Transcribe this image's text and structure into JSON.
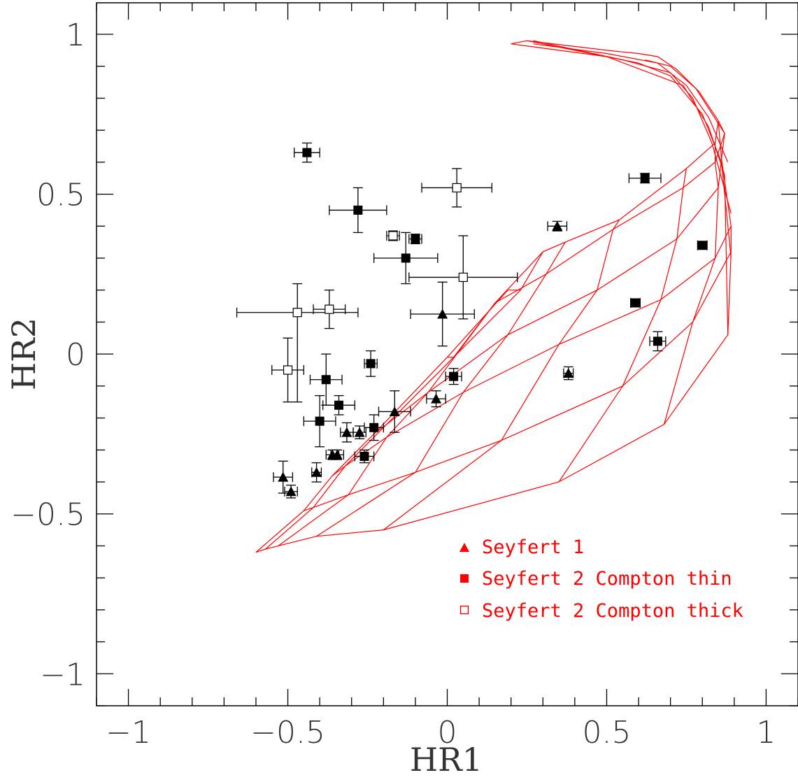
{
  "chart_data": {
    "type": "scatter",
    "xlabel": "HR1",
    "ylabel": "HR2",
    "xlim": [
      -1.1,
      1.1
    ],
    "ylim": [
      -1.1,
      1.0985
    ],
    "x_ticks": [
      {
        "value": -1,
        "label": "−1"
      },
      {
        "value": -0.5,
        "label": "−0.5"
      },
      {
        "value": 0,
        "label": "0"
      },
      {
        "value": 0.5,
        "label": "0.5"
      },
      {
        "value": 1,
        "label": "1"
      }
    ],
    "y_ticks": [
      {
        "value": -1,
        "label": "−1"
      },
      {
        "value": -0.5,
        "label": "−0.5"
      },
      {
        "value": 0,
        "label": "0"
      },
      {
        "value": 0.5,
        "label": "0.5"
      },
      {
        "value": 1,
        "label": "1"
      }
    ],
    "minor_tick_step": 0.1,
    "grid": false,
    "legend_position": "bottom-right",
    "colors": {
      "axis": "#000000",
      "data": "#000000",
      "model": "#ff0000",
      "legend": "#ff0000"
    },
    "series": [
      {
        "name": "Seyfert 1",
        "marker": "filled-triangle",
        "points": [
          {
            "x": -0.515,
            "y": -0.385,
            "xerr": [
              0.03,
              0.03
            ],
            "yerr": [
              0.05,
              0.05
            ]
          },
          {
            "x": -0.49,
            "y": -0.43,
            "xerr": [
              0.02,
              0.02
            ],
            "yerr": [
              0.02,
              0.02
            ]
          },
          {
            "x": -0.41,
            "y": -0.37,
            "xerr": [
              0.015,
              0.015
            ],
            "yerr": [
              0.03,
              0.03
            ]
          },
          {
            "x": -0.36,
            "y": -0.315,
            "xerr": [
              0.02,
              0.02
            ],
            "yerr": [
              0.015,
              0.015
            ]
          },
          {
            "x": -0.345,
            "y": -0.315,
            "xerr": [
              0.02,
              0.02
            ],
            "yerr": [
              0.015,
              0.015
            ]
          },
          {
            "x": -0.315,
            "y": -0.245,
            "xerr": [
              0.02,
              0.02
            ],
            "yerr": [
              0.03,
              0.03
            ]
          },
          {
            "x": -0.275,
            "y": -0.245,
            "xerr": [
              0.02,
              0.02
            ],
            "yerr": [
              0.02,
              0.02
            ]
          },
          {
            "x": -0.165,
            "y": -0.18,
            "xerr": [
              0.05,
              0.05
            ],
            "yerr": [
              0.065,
              0.065
            ]
          },
          {
            "x": -0.035,
            "y": -0.14,
            "xerr": [
              0.03,
              0.03
            ],
            "yerr": [
              0.025,
              0.025
            ]
          },
          {
            "x": -0.015,
            "y": 0.125,
            "xerr": [
              0.1,
              0.1
            ],
            "yerr": [
              0.1,
              0.1
            ]
          },
          {
            "x": 0.345,
            "y": 0.4,
            "xerr": [
              0.03,
              0.03
            ],
            "yerr": [
              0.015,
              0.015
            ]
          },
          {
            "x": 0.38,
            "y": -0.06,
            "xerr": [
              0.015,
              0.015
            ],
            "yerr": [
              0.02,
              0.02
            ]
          }
        ]
      },
      {
        "name": "Seyfert 2 Compton thin",
        "marker": "filled-square",
        "points": [
          {
            "x": -0.44,
            "y": 0.63,
            "xerr": [
              0.04,
              0.04
            ],
            "yerr": [
              0.03,
              0.03
            ]
          },
          {
            "x": -0.28,
            "y": 0.45,
            "xerr": [
              0.09,
              0.09
            ],
            "yerr": [
              0.07,
              0.07
            ]
          },
          {
            "x": -0.1,
            "y": 0.36,
            "xerr": [
              0.02,
              0.02
            ],
            "yerr": [
              0.015,
              0.015
            ]
          },
          {
            "x": -0.13,
            "y": 0.3,
            "xerr": [
              0.1,
              0.1
            ],
            "yerr": [
              0.08,
              0.08
            ]
          },
          {
            "x": -0.38,
            "y": -0.08,
            "xerr": [
              0.05,
              0.05
            ],
            "yerr": [
              0.08,
              0.08
            ]
          },
          {
            "x": -0.24,
            "y": -0.03,
            "xerr": [
              0.02,
              0.02
            ],
            "yerr": [
              0.04,
              0.04
            ]
          },
          {
            "x": -0.34,
            "y": -0.16,
            "xerr": [
              0.05,
              0.05
            ],
            "yerr": [
              0.03,
              0.03
            ]
          },
          {
            "x": -0.4,
            "y": -0.21,
            "xerr": [
              0.05,
              0.05
            ],
            "yerr": [
              0.08,
              0.08
            ]
          },
          {
            "x": -0.23,
            "y": -0.23,
            "xerr": [
              0.03,
              0.03
            ],
            "yerr": [
              0.04,
              0.04
            ]
          },
          {
            "x": -0.26,
            "y": -0.32,
            "xerr": [
              0.03,
              0.03
            ],
            "yerr": [
              0.02,
              0.02
            ]
          },
          {
            "x": 0.02,
            "y": -0.07,
            "xerr": [
              0.025,
              0.025
            ],
            "yerr": [
              0.025,
              0.025
            ]
          },
          {
            "x": 0.62,
            "y": 0.55,
            "xerr": [
              0.05,
              0.05
            ],
            "yerr": [
              0.015,
              0.015
            ]
          },
          {
            "x": 0.8,
            "y": 0.34,
            "xerr": [
              0.015,
              0.015
            ],
            "yerr": [
              0.01,
              0.01
            ]
          },
          {
            "x": 0.59,
            "y": 0.16,
            "xerr": [
              0.015,
              0.015
            ],
            "yerr": [
              0.01,
              0.01
            ]
          },
          {
            "x": 0.66,
            "y": 0.04,
            "xerr": [
              0.025,
              0.025
            ],
            "yerr": [
              0.03,
              0.03
            ]
          }
        ]
      },
      {
        "name": "Seyfert 2 Compton thick",
        "marker": "open-square",
        "points": [
          {
            "x": -0.17,
            "y": 0.37,
            "xerr": [
              0.02,
              0.02
            ],
            "yerr": [
              0.015,
              0.015
            ]
          },
          {
            "x": 0.03,
            "y": 0.52,
            "xerr": [
              0.11,
              0.11
            ],
            "yerr": [
              0.06,
              0.06
            ]
          },
          {
            "x": 0.05,
            "y": 0.24,
            "xerr": [
              0.17,
              0.17
            ],
            "yerr": [
              0.13,
              0.13
            ]
          },
          {
            "x": -0.47,
            "y": 0.13,
            "xerr": [
              0.19,
              0.19
            ],
            "yerr": [
              0.28,
              0.09
            ]
          },
          {
            "x": -0.37,
            "y": 0.14,
            "xerr": [
              0.05,
              0.05
            ],
            "yerr": [
              0.06,
              0.06
            ]
          },
          {
            "x": -0.5,
            "y": -0.05,
            "xerr": [
              0.05,
              0.05
            ],
            "yerr": [
              0.1,
              0.1
            ]
          }
        ]
      }
    ],
    "model_grid": {
      "rows": [
        [
          [
            -0.6,
            -0.62
          ],
          [
            -0.57,
            -0.61
          ],
          [
            -0.53,
            -0.6
          ],
          [
            -0.41,
            -0.57
          ],
          [
            -0.2,
            -0.55
          ],
          [
            0.35,
            -0.4
          ],
          [
            0.68,
            -0.22
          ],
          [
            0.88,
            0.06
          ]
        ],
        [
          [
            -0.45,
            -0.49
          ],
          [
            -0.42,
            -0.48
          ],
          [
            -0.31,
            -0.44
          ],
          [
            -0.1,
            -0.37
          ],
          [
            0.17,
            -0.27
          ],
          [
            0.55,
            -0.1
          ],
          [
            0.77,
            0.1
          ],
          [
            0.89,
            0.32
          ]
        ],
        [
          [
            -0.36,
            -0.38
          ],
          [
            -0.32,
            -0.35
          ],
          [
            -0.19,
            -0.26
          ],
          [
            0.05,
            -0.12
          ],
          [
            0.35,
            0.03
          ],
          [
            0.67,
            0.17
          ],
          [
            0.84,
            0.3
          ],
          [
            0.89,
            0.4
          ]
        ],
        [
          [
            -0.23,
            -0.25
          ],
          [
            -0.19,
            -0.22
          ],
          [
            -0.06,
            -0.12
          ],
          [
            0.19,
            0.06
          ],
          [
            0.47,
            0.2
          ],
          [
            0.72,
            0.36
          ],
          [
            0.85,
            0.52
          ],
          [
            0.86,
            0.61
          ]
        ],
        [
          [
            0.0,
            -0.01
          ],
          [
            0.02,
            -0.01
          ],
          [
            0.15,
            0.16
          ],
          [
            0.31,
            0.25
          ],
          [
            0.52,
            0.39
          ],
          [
            0.74,
            0.52
          ],
          [
            0.84,
            0.6
          ],
          [
            0.87,
            0.69
          ]
        ],
        [
          [
            0.19,
            0.2
          ],
          [
            0.23,
            0.2
          ],
          [
            0.3,
            0.32
          ],
          [
            0.37,
            0.35
          ],
          [
            0.54,
            0.42
          ],
          [
            0.75,
            0.58
          ],
          [
            0.84,
            0.66
          ],
          [
            0.85,
            0.73
          ]
        ]
      ],
      "tail": [
        [
          [
            0.85,
            0.73
          ],
          [
            0.79,
            0.82
          ],
          [
            0.72,
            0.89
          ],
          [
            0.66,
            0.93
          ],
          [
            0.6,
            0.94
          ],
          [
            0.5,
            0.95
          ],
          [
            0.25,
            0.98
          ],
          [
            0.2,
            0.97
          ]
        ],
        [
          [
            0.88,
            0.6
          ],
          [
            0.82,
            0.74
          ],
          [
            0.75,
            0.84
          ],
          [
            0.66,
            0.91
          ],
          [
            0.5,
            0.94
          ],
          [
            0.27,
            0.97
          ]
        ],
        [
          [
            0.89,
            0.44
          ],
          [
            0.83,
            0.66
          ],
          [
            0.77,
            0.8
          ],
          [
            0.7,
            0.88
          ],
          [
            0.55,
            0.92
          ],
          [
            0.27,
            0.98
          ]
        ],
        [
          [
            0.89,
            0.3
          ],
          [
            0.86,
            0.6
          ],
          [
            0.8,
            0.75
          ],
          [
            0.7,
            0.87
          ],
          [
            0.6,
            0.91
          ],
          [
            0.25,
            0.98
          ]
        ],
        [
          [
            0.88,
            0.06
          ],
          [
            0.87,
            0.56
          ],
          [
            0.82,
            0.71
          ],
          [
            0.74,
            0.84
          ],
          [
            0.5,
            0.93
          ],
          [
            0.2,
            0.97
          ]
        ],
        [
          [
            0.86,
            0.61
          ],
          [
            0.85,
            0.73
          ]
        ],
        [
          [
            0.87,
            0.69
          ],
          [
            0.78,
            0.83
          ],
          [
            0.7,
            0.9
          ],
          [
            0.62,
            0.92
          ]
        ]
      ]
    }
  }
}
